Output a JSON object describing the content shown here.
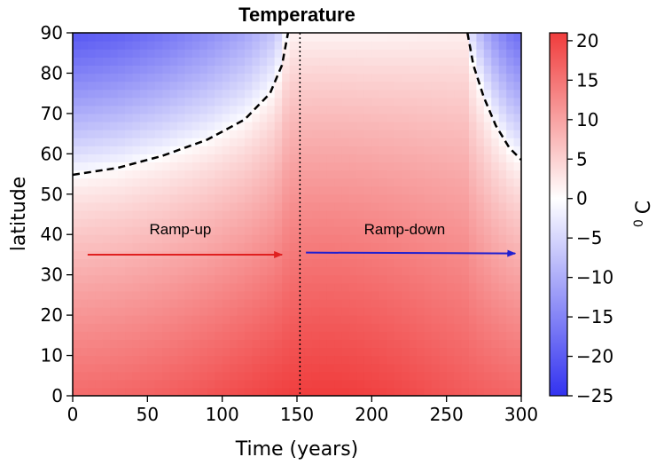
{
  "chart_data": {
    "type": "heatmap",
    "title": "Temperature",
    "xlabel": "Time (years)",
    "ylabel": "latitude",
    "xlim": [
      0,
      300
    ],
    "ylim": [
      0,
      90
    ],
    "x_ticks": [
      0,
      50,
      100,
      150,
      200,
      250,
      300
    ],
    "y_ticks": [
      0,
      10,
      20,
      30,
      40,
      50,
      60,
      70,
      80,
      90
    ],
    "colorbar": {
      "label": "0 C",
      "label_sup": "0",
      "label_unit": "C",
      "range": [
        -25,
        21
      ],
      "ticks": [
        20,
        15,
        10,
        5,
        0,
        -5,
        -10,
        -15,
        -20,
        -25
      ],
      "colormap": "bwr",
      "color_low": "#3232f0",
      "color_mid": "#ffffff",
      "color_high": "#f03c3c"
    },
    "divider_time": 152,
    "zero_contour_left": [
      [
        0,
        54.8
      ],
      [
        30,
        56.5
      ],
      [
        60,
        59.5
      ],
      [
        90,
        63.5
      ],
      [
        115,
        68.5
      ],
      [
        132,
        75
      ],
      [
        140,
        82
      ],
      [
        144,
        90
      ]
    ],
    "zero_contour_right": [
      [
        264,
        90
      ],
      [
        268,
        82
      ],
      [
        275,
        74
      ],
      [
        283,
        67
      ],
      [
        292,
        61.5
      ],
      [
        300,
        58.5
      ]
    ],
    "annotations": [
      {
        "text": "Ramp-up",
        "label_x": 72,
        "label_y": 40,
        "arrow_from": [
          10,
          35
        ],
        "arrow_to": [
          140,
          35
        ],
        "color": "#e02020"
      },
      {
        "text": "Ramp-down",
        "label_x": 222,
        "label_y": 40,
        "arrow_from": [
          156,
          35.5
        ],
        "arrow_to": [
          296,
          35.3
        ],
        "color": "#2020d0"
      }
    ]
  }
}
